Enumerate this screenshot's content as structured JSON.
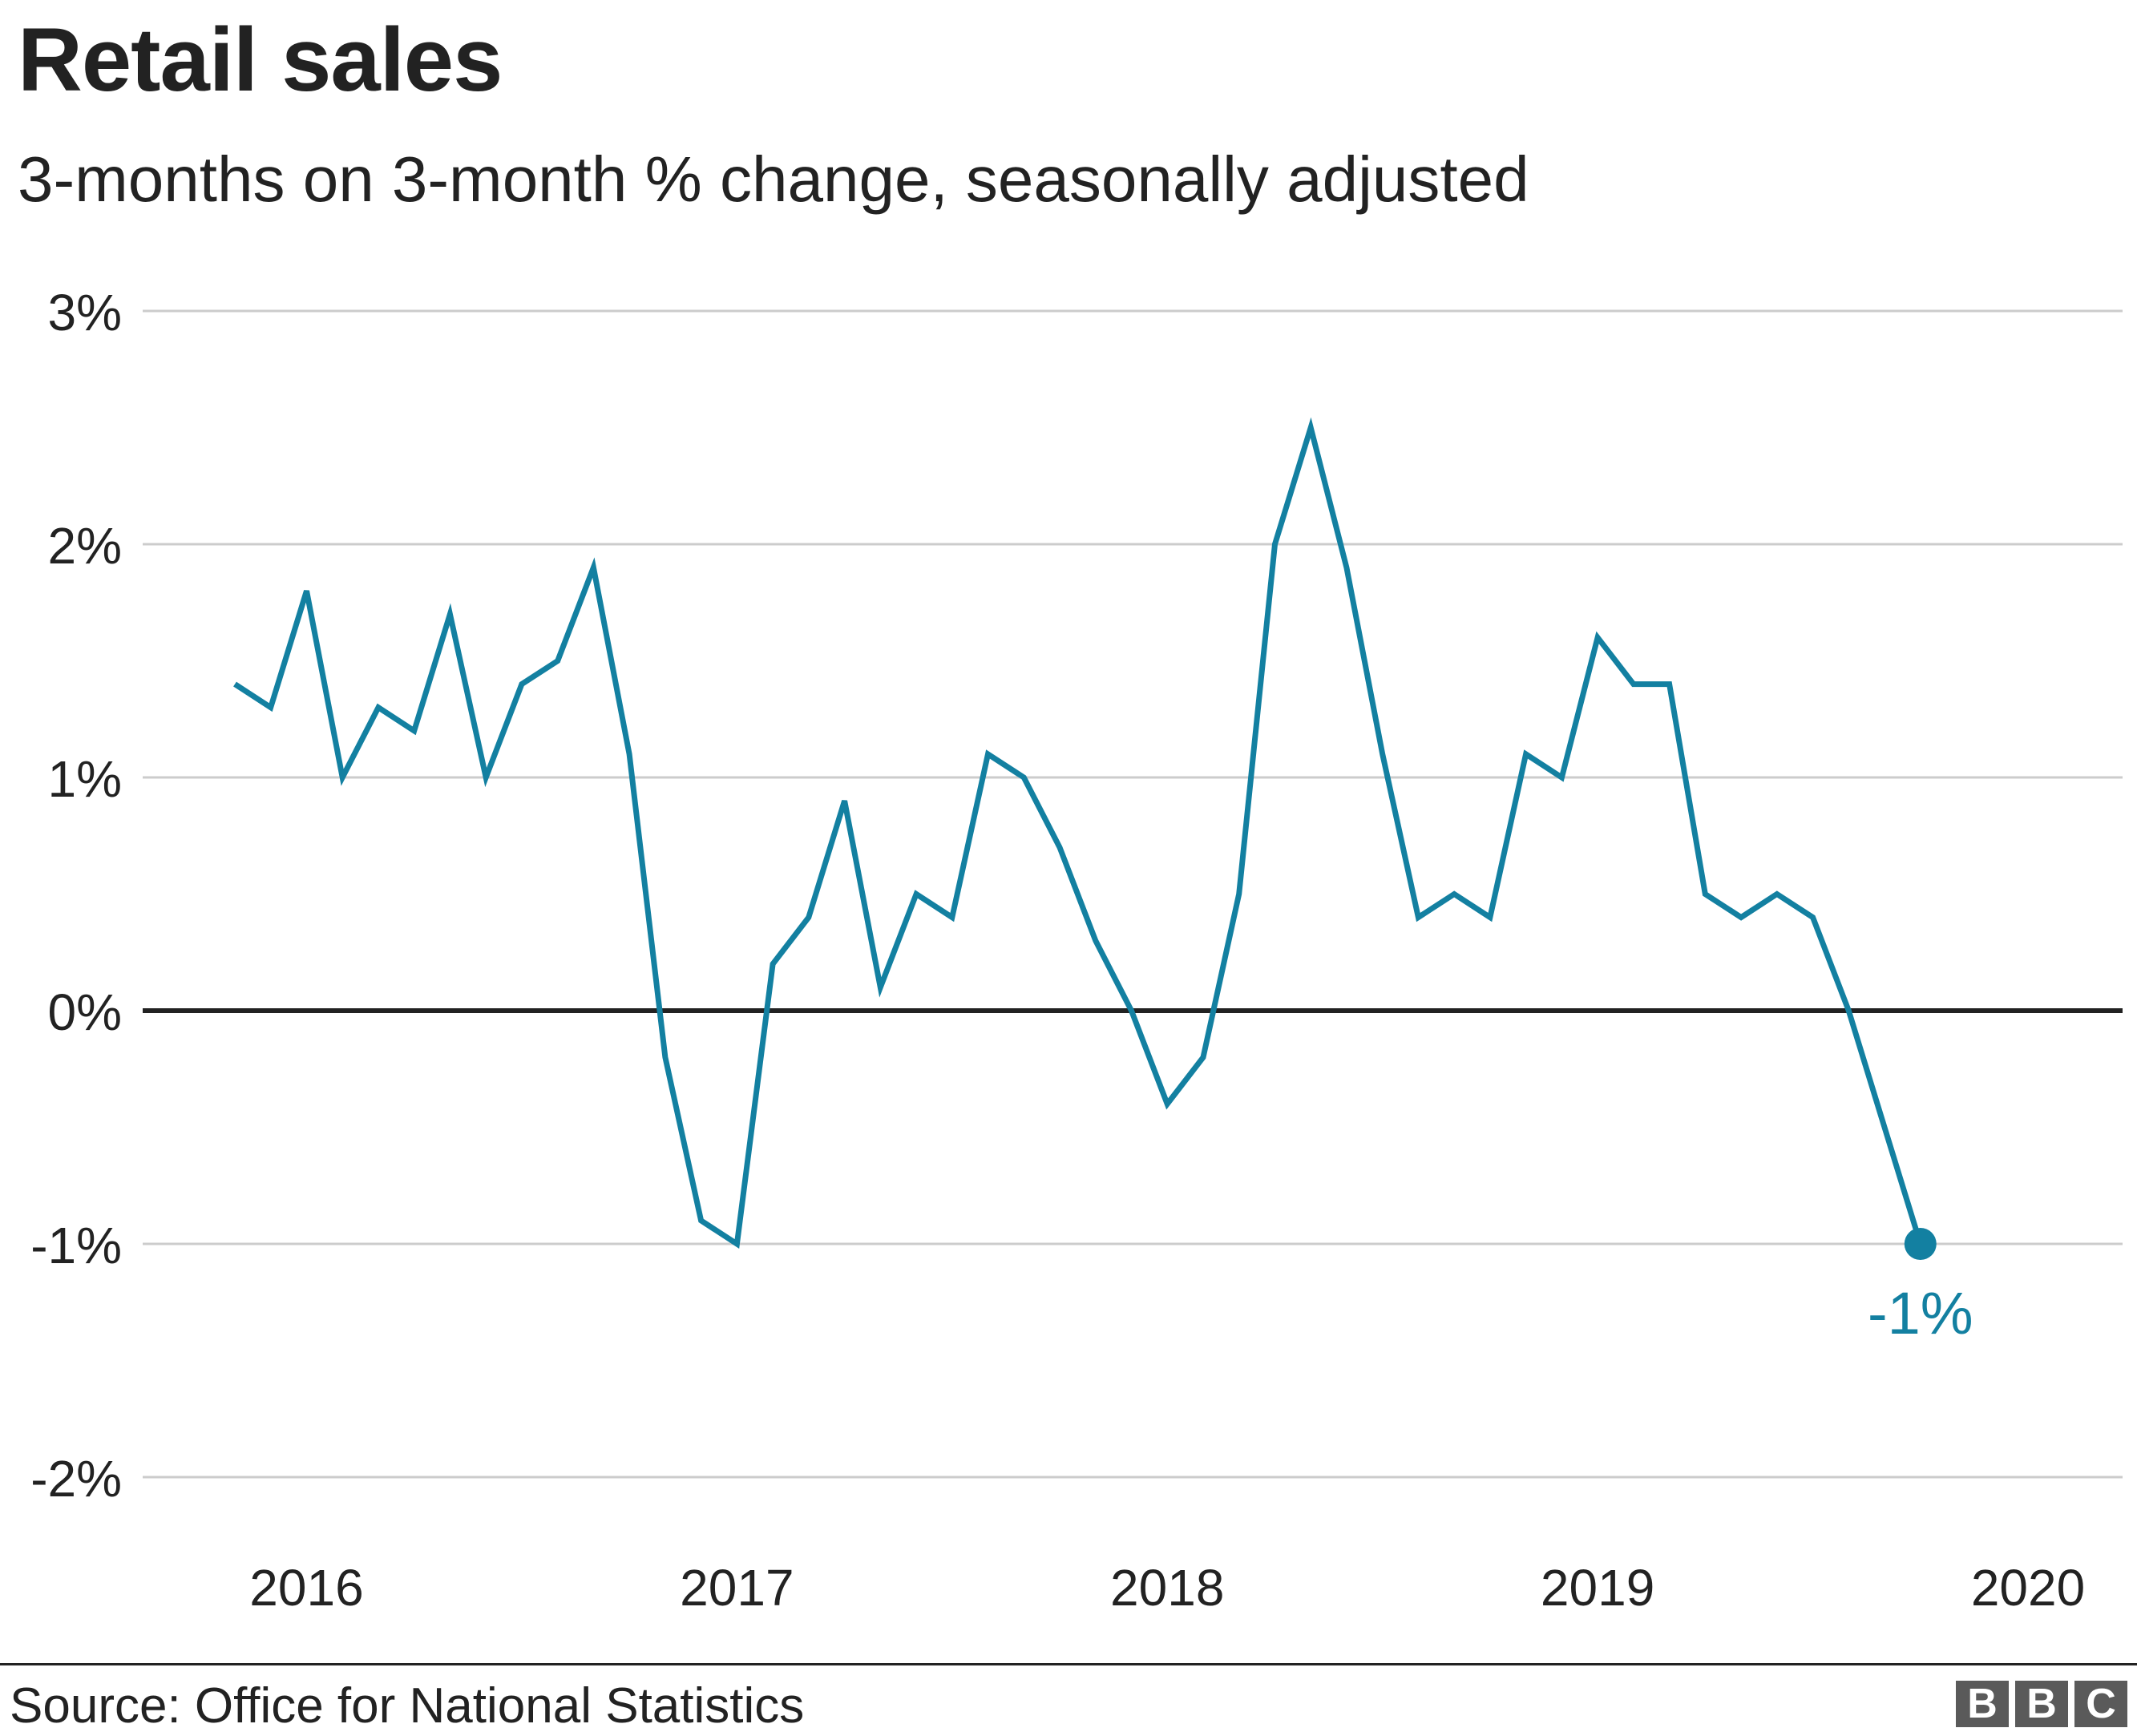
{
  "header": {
    "title": "Retail sales",
    "subtitle": "3-months on 3-month % change, seasonally adjusted"
  },
  "footer": {
    "source": "Source: Office for National Statistics",
    "logo_letters": [
      "B",
      "B",
      "C"
    ]
  },
  "chart_data": {
    "type": "line",
    "title": "Retail sales",
    "subtitle": "3-months on 3-month % change, seasonally adjusted",
    "xlabel": "",
    "ylabel": "",
    "x_tick_labels": [
      "2016",
      "2017",
      "2018",
      "2019",
      "2020"
    ],
    "y_ticks": [
      3,
      2,
      1,
      0,
      -1,
      -2
    ],
    "y_tick_labels": [
      "3%",
      "2%",
      "1%",
      "0%",
      "-1%",
      "-2%"
    ],
    "ylim": [
      -2,
      3
    ],
    "grid": true,
    "zero_line": true,
    "line_color": "#1380a1",
    "x_start": "2015-11",
    "x_end": "2020-01",
    "series": [
      {
        "values": [
          1.4,
          1.3,
          1.8,
          1.0,
          1.3,
          1.2,
          1.7,
          1.0,
          1.4,
          1.5,
          1.9,
          1.1,
          -0.2,
          -0.9,
          -1.0,
          0.2,
          0.4,
          0.9,
          0.1,
          0.5,
          0.4,
          1.1,
          1.0,
          0.7,
          0.3,
          0.0,
          -0.4,
          -0.2,
          0.5,
          2.0,
          2.5,
          1.9,
          1.1,
          0.4,
          0.5,
          0.4,
          1.1,
          1.0,
          1.6,
          1.4,
          1.4,
          0.5,
          0.4,
          0.5,
          0.4,
          0.0,
          -0.5,
          -1.0
        ]
      }
    ],
    "annotations": [
      {
        "text": "-1%",
        "target": "last_point",
        "value": -1.0
      }
    ]
  }
}
